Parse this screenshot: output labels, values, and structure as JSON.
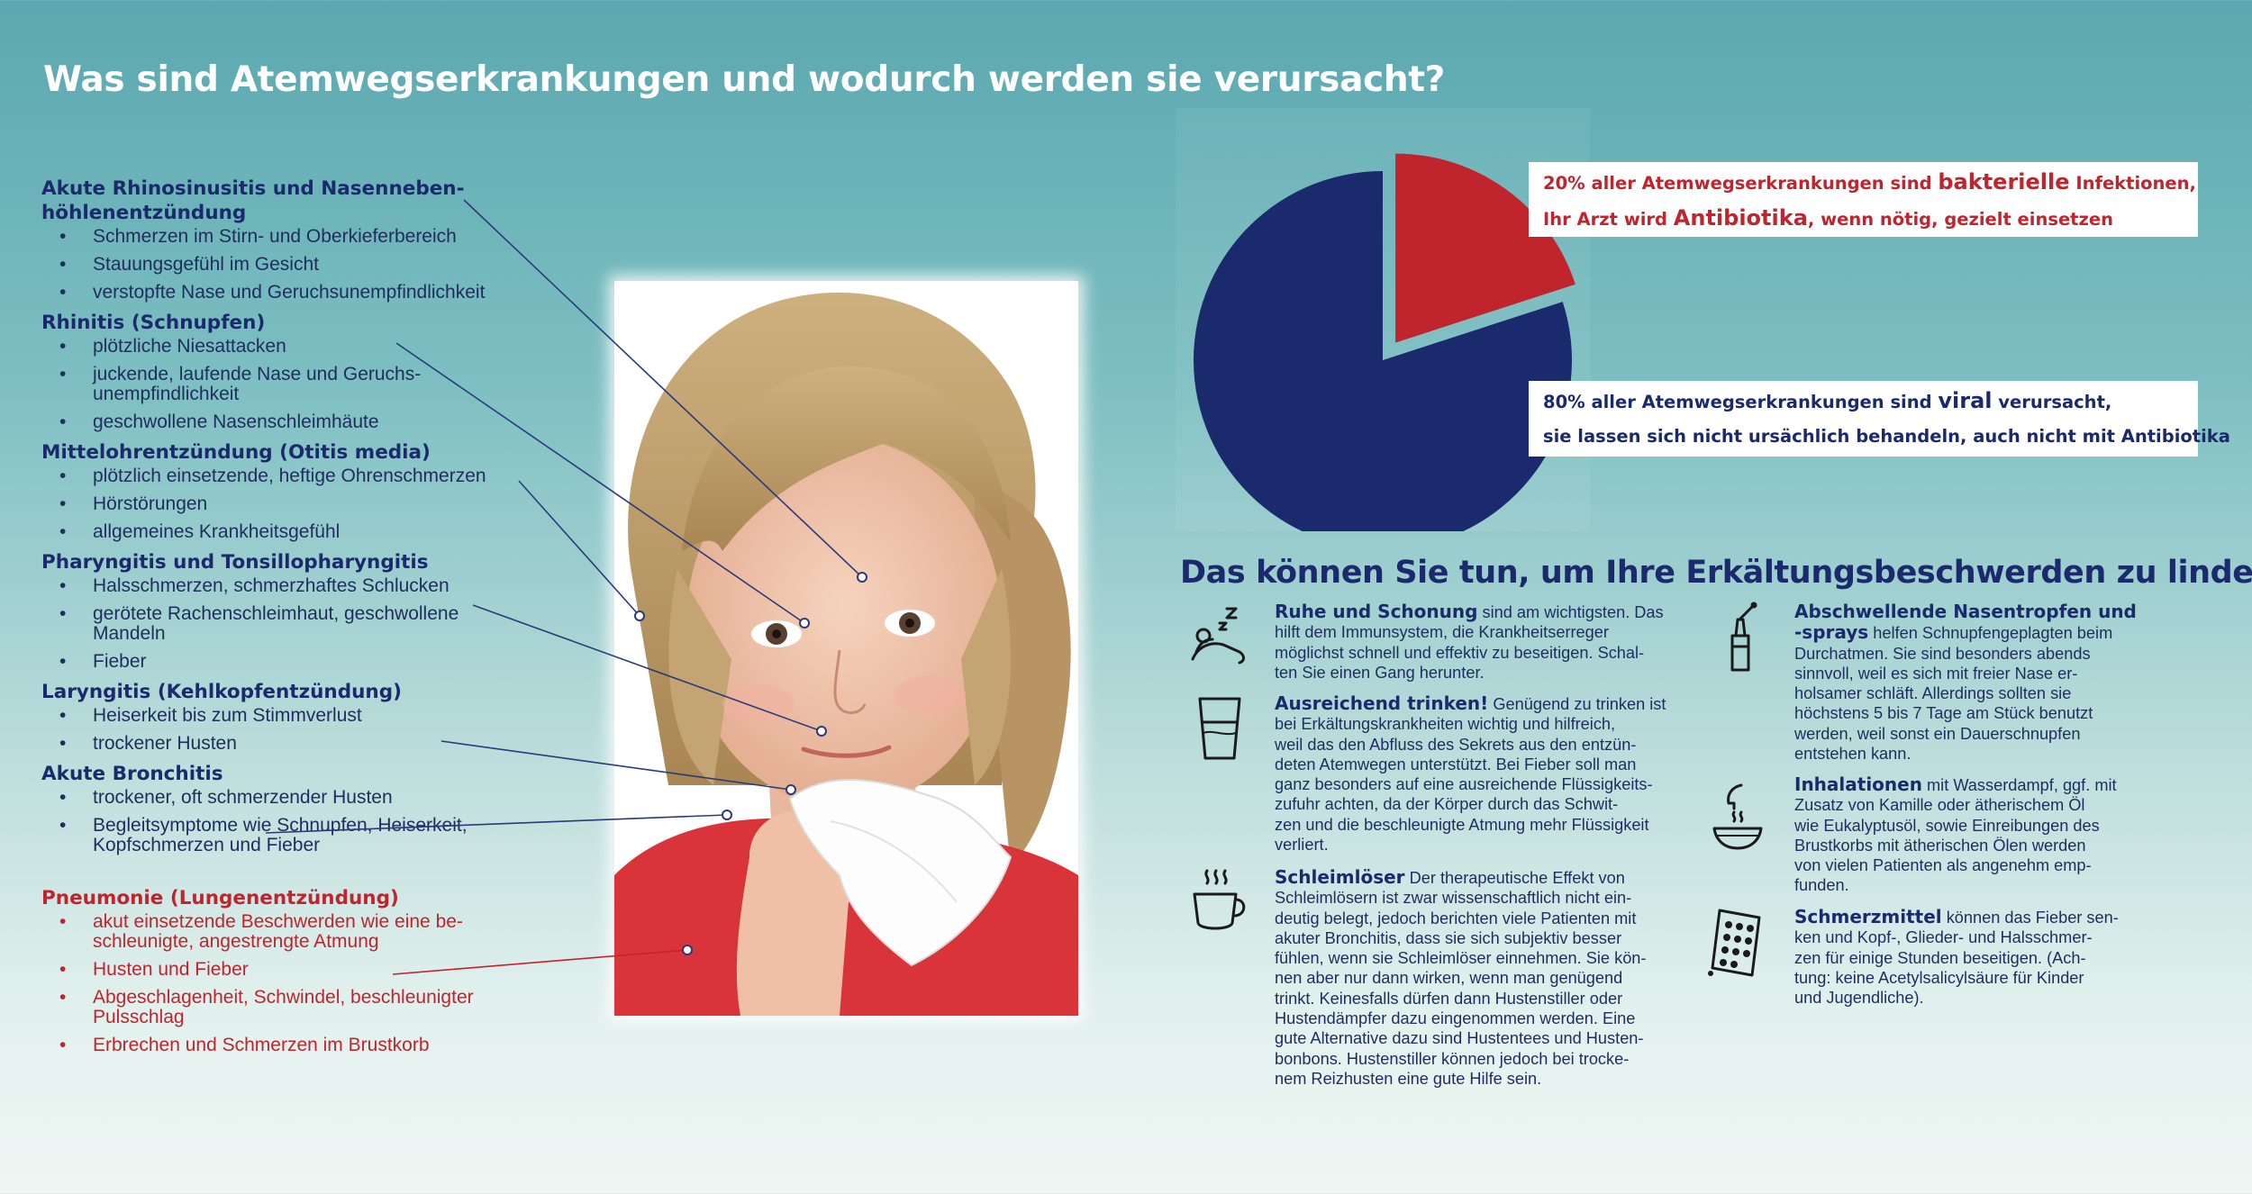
{
  "title": "Was sind Atemwegserkrankungen und wodurch werden sie verursacht?",
  "conditions": [
    {
      "title": "Akute Rhinosinusitis und Nasenneben-\nhöhlenentzündung",
      "items": [
        "Schmerzen im Stirn- und Oberkieferbereich",
        "Stauungsgefühl im Gesicht",
        "verstopfte Nase und Geruchsunempfindlichkeit"
      ]
    },
    {
      "title": "Rhinitis (Schnupfen)",
      "items": [
        "plötzliche Niesattacken",
        "juckende, laufende Nase und Geruchs-\nunempfindlichkeit",
        "geschwollene Nasenschleimhäute"
      ]
    },
    {
      "title": "Mittelohrentzündung (Otitis media)",
      "items": [
        "plötzlich einsetzende, heftige Ohrenschmerzen",
        "Hörstörungen",
        "allgemeines Krankheitsgefühl"
      ]
    },
    {
      "title": "Pharyngitis und Tonsillopharyngitis",
      "items": [
        "Halsschmerzen, schmerzhaftes Schlucken",
        "gerötete Rachenschleimhaut, geschwollene\nMandeln",
        "Fieber"
      ]
    },
    {
      "title": "Laryngitis (Kehlkopfentzündung)",
      "items": [
        "Heiserkeit bis zum Stimmverlust",
        "trockener Husten"
      ]
    },
    {
      "title": "Akute Bronchitis",
      "items": [
        "trockener, oft schmerzender Husten",
        "Begleitsymptome wie Schnupfen, Heiserkeit,\nKopfschmerzen und Fieber"
      ]
    },
    {
      "title": "Pneumonie (Lungenentzündung)",
      "items": [
        "akut einsetzende Beschwerden wie eine be-\nschleunigte, angestrengte Atmung",
        "Husten und Fieber",
        "Abgeschlagenheit, Schwindel, beschleunigter\nPulsschlag",
        "Erbrechen und Schmerzen im Brustkorb"
      ]
    }
  ],
  "callouts": {
    "bacterial": {
      "prefix": "20% aller Atemwegserkrankungen sind ",
      "emph": "bakterielle",
      "suffix": " Infektionen,",
      "line2_prefix": "Ihr Arzt wird ",
      "line2_emph": "Antibiotika",
      "line2_suffix": ", wenn nötig, gezielt einsetzen"
    },
    "viral": {
      "prefix": "80% aller Atemwegserkrankungen sind ",
      "emph": "viral",
      "suffix": " verursacht,",
      "line2": "sie lassen sich nicht ursächlich behandeln, auch nicht mit Antibiotika"
    }
  },
  "chart_data": {
    "type": "pie",
    "categories": [
      "bakterielle Infektionen",
      "viral verursacht"
    ],
    "values": [
      20,
      80
    ],
    "colors": [
      "#c0242d",
      "#1a2a6c"
    ]
  },
  "tips_title": "Das können Sie tun, um Ihre Erkältungsbeschwerden zu lindern:",
  "tips": [
    {
      "icon": "sleeping-person-icon",
      "heading": "Ruhe und Schonung",
      "text": " sind am wichtigsten. Das\nhilft dem Immunsystem, die Krankheitserreger\nmöglichst schnell und effektiv zu beseitigen. Schal-\nten Sie einen Gang herunter."
    },
    {
      "icon": "water-glass-icon",
      "heading": "Ausreichend trinken!",
      "text": " Genügend zu trinken ist\nbei Erkältungskrankheiten wichtig und hilfreich,\nweil das den Abfluss des Sekrets aus den entzün-\ndeten Atemwegen unterstützt. Bei Fieber soll man\nganz besonders auf eine ausreichende Flüssigkeits-\nzufuhr achten, da der Körper durch das Schwit-\nzen und die beschleunigte Atmung mehr Flüssigkeit\nverliert."
    },
    {
      "icon": "hot-cup-icon",
      "heading": "Schleimlöser",
      "text": " Der therapeutische Effekt von\nSchleimlösern ist zwar wissenschaftlich nicht ein-\ndeutig belegt, jedoch berichten viele Patienten mit\nakuter Bronchitis, dass sie sich subjektiv besser\nfühlen, wenn sie Schleimlöser einnehmen. Sie kön-\nnen aber nur dann wirken, wenn man genügend\ntrinkt. Keinesfalls dürfen dann Hustenstiller oder\nHustendämpfer dazu eingenommen werden. Eine\ngute Alternative dazu sind Hustentees und Husten-\nbonbons. Hustenstiller können jedoch bei trocke-\nnem Reizhusten eine gute Hilfe sein."
    },
    {
      "icon": "nasal-spray-icon",
      "heading": "Abschwellende Nasentropfen und\n-sprays",
      "text": " helfen Schnupfengeplagten beim\nDurchatmen. Sie sind besonders abends\nsinnvoll, weil es sich mit freier Nase er-\nholsamer schläft. Allerdings sollten sie\nhöchstens 5 bis 7 Tage am Stück benutzt\nwerden, weil sonst ein Dauerschnupfen\nentstehen kann."
    },
    {
      "icon": "inhalation-bowl-icon",
      "heading": "Inhalationen",
      "text": " mit Wasserdampf, ggf. mit\nZusatz von Kamille oder ätherischem Öl\nwie Eukalyptusöl, sowie Einreibungen des\nBrustkorbs mit ätherischen Ölen werden\nvon vielen Patienten als angenehm emp-\nfunden."
    },
    {
      "icon": "pill-blister-icon",
      "heading": "Schmerzmittel",
      "text": " können das Fieber sen-\nken und Kopf-, Glieder- und Halsschmer-\nzen für einige Stunden beseitigen. (Ach-\ntung: keine Acetylsalicylsäure für Kinder\nund Jugendliche)."
    }
  ]
}
